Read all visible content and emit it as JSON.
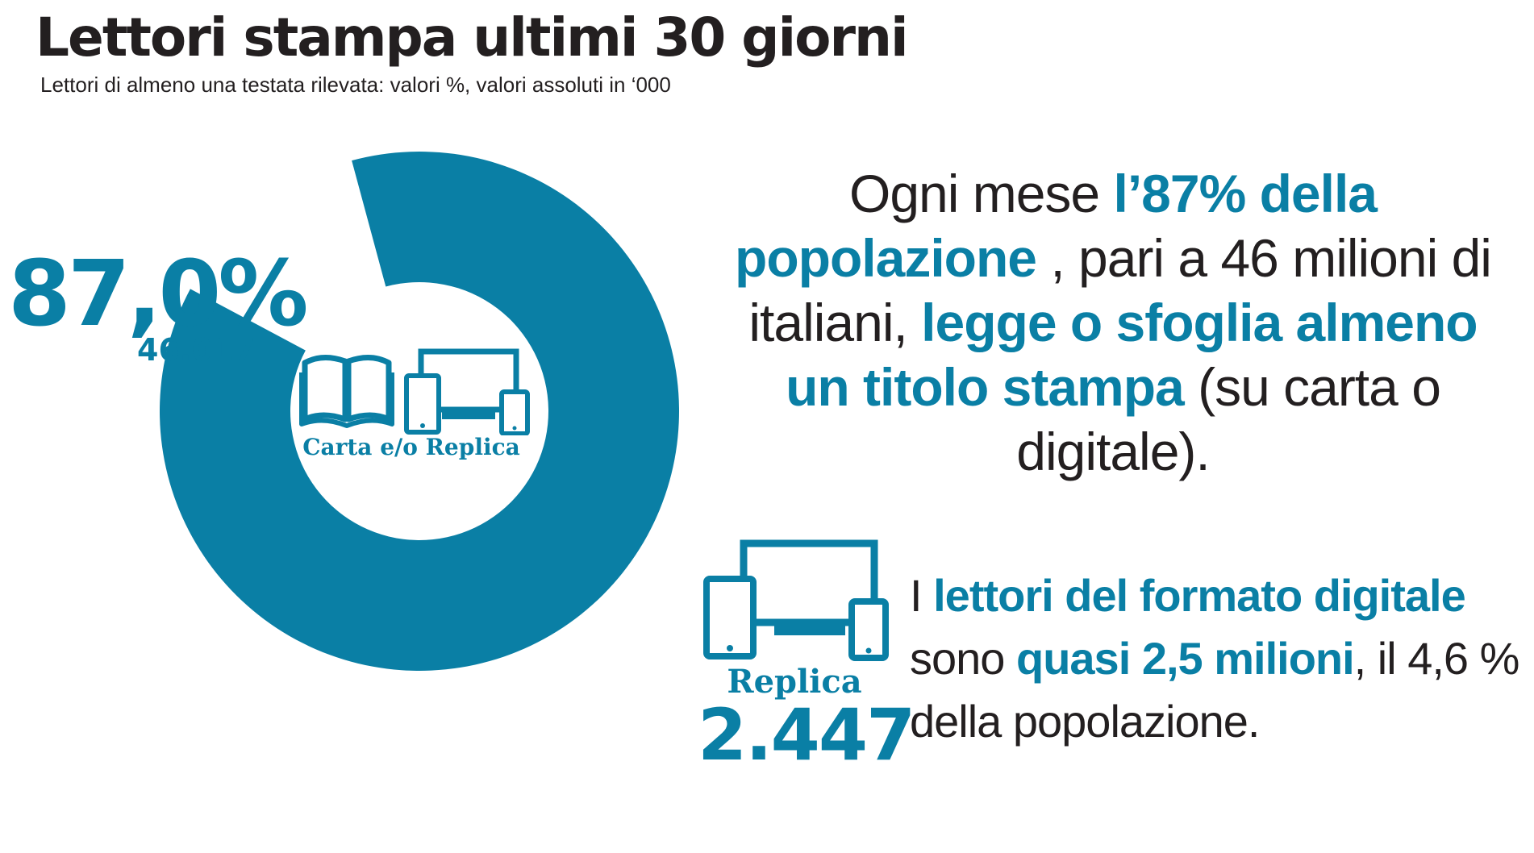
{
  "header": {
    "title": "Lettori stampa ultimi 30 giorni",
    "subtitle": "Lettori di almeno una testata rilevata: valori %, valori assoluti in ‘000"
  },
  "colors": {
    "accent": "#0a7fa5",
    "text": "#231f20",
    "background": "#ffffff"
  },
  "chart_data": {
    "type": "pie",
    "categories": [
      "Carta e/o Replica",
      ""
    ],
    "values": [
      87.0,
      13.0
    ],
    "unit": "%",
    "center_label": "Carta e/o Replica",
    "value_label": "87,0%",
    "absolute_label": "46.017"
  },
  "icons": {
    "center": [
      "open-book-icon",
      "devices-icon"
    ],
    "replica": "devices-icon"
  },
  "main_text": {
    "p1": "Ogni mese ",
    "h1": "l’87% della popolazione",
    "p2": " , pari a 46 milioni di italiani, ",
    "h2": "legge o sfoglia almeno un titolo  stampa",
    "p3": "  (su carta o digitale)."
  },
  "replica": {
    "label": "Replica",
    "value": "2.447"
  },
  "digital_text": {
    "p1": "I ",
    "h1": "lettori del formato digitale",
    "p2": " sono ",
    "h2": "quasi 2,5 milioni",
    "p3": ", il 4,6 % della popolazione."
  }
}
